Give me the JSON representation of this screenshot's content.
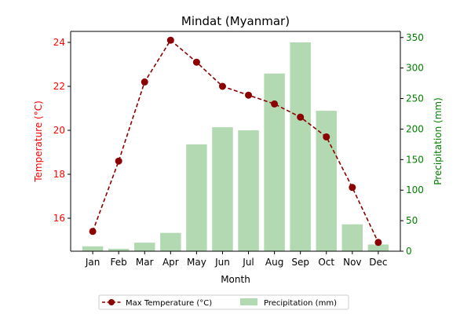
{
  "chart_data": {
    "type": "bar",
    "title": "Mindat (Myanmar)",
    "xlabel": "Month",
    "categories": [
      "Jan",
      "Feb",
      "Mar",
      "Apr",
      "May",
      "Jun",
      "Jul",
      "Aug",
      "Sep",
      "Oct",
      "Nov",
      "Dec"
    ],
    "left_axis": {
      "label": "Temperature (°C)",
      "color": "#ff0000",
      "ylim": [
        14.5,
        24.5
      ],
      "ticks": [
        16,
        18,
        20,
        22,
        24
      ]
    },
    "right_axis": {
      "label": "Precipitation (mm)",
      "color": "#008000",
      "ylim": [
        0,
        360
      ],
      "ticks": [
        0,
        50,
        100,
        150,
        200,
        250,
        300,
        350
      ]
    },
    "series": [
      {
        "name": "Max Temperature (°C)",
        "type": "line",
        "axis": "left",
        "color": "#8b0000",
        "style": "dashed",
        "marker": "circle",
        "values": [
          15.4,
          18.6,
          22.2,
          24.1,
          23.1,
          22.0,
          21.6,
          21.2,
          20.6,
          19.7,
          17.4,
          14.9
        ]
      },
      {
        "name": "Precipitation (mm)",
        "type": "bar",
        "axis": "right",
        "color": "#b2d9b2",
        "values": [
          8,
          4,
          14,
          30,
          175,
          203,
          198,
          291,
          342,
          230,
          44,
          11
        ]
      }
    ],
    "legend": {
      "placement": "bottom-center",
      "items": [
        "Max Temperature (°C)",
        "Precipitation (mm)"
      ]
    },
    "grid": false
  }
}
